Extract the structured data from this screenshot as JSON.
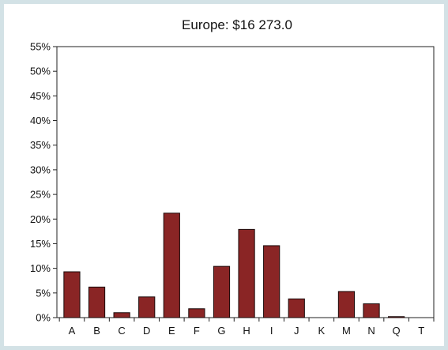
{
  "chart_data": {
    "type": "bar",
    "title": "Europe:  $16 273.0",
    "xlabel": "",
    "ylabel": "",
    "categories": [
      "A",
      "B",
      "C",
      "D",
      "E",
      "F",
      "G",
      "H",
      "I",
      "J",
      "K",
      "M",
      "N",
      "Q",
      "T"
    ],
    "values": [
      9.3,
      6.2,
      1.0,
      4.2,
      21.2,
      1.8,
      10.4,
      17.9,
      14.6,
      3.8,
      0.0,
      5.3,
      2.8,
      0.2,
      0.0
    ],
    "y_ticks": [
      "0%",
      "5%",
      "10%",
      "15%",
      "20%",
      "25%",
      "30%",
      "35%",
      "40%",
      "45%",
      "50%",
      "55%"
    ],
    "ylim": [
      0,
      55
    ],
    "grid": false,
    "legend": "none",
    "colors": {
      "bar": "#8a2525",
      "bar_outline": "#1a0a0a",
      "background": "#d3e2e6",
      "plot_background": "#ffffff"
    }
  }
}
